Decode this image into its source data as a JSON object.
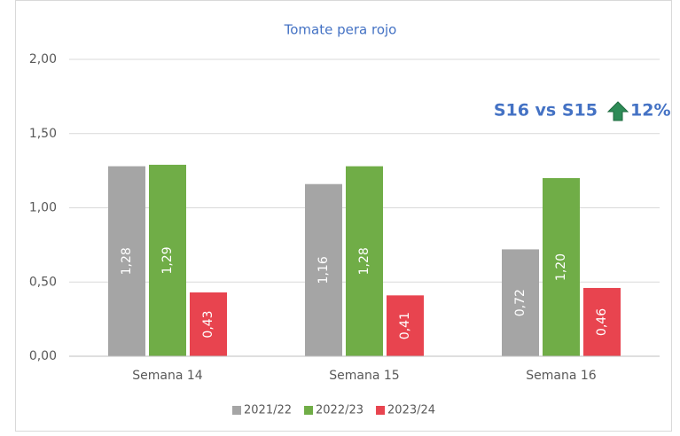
{
  "chart_data": {
    "type": "bar",
    "title": "Tomate pera rojo",
    "categories": [
      "Semana 14",
      "Semana 15",
      "Semana 16"
    ],
    "series": [
      {
        "name": "2021/22",
        "color": "#a5a5a5",
        "values": [
          1.28,
          1.16,
          0.72
        ],
        "value_labels": [
          "1,28",
          "1,16",
          "0,72"
        ]
      },
      {
        "name": "2022/23",
        "color": "#70ad47",
        "values": [
          1.29,
          1.28,
          1.2
        ],
        "value_labels": [
          "1,29",
          "1,28",
          "1,20"
        ]
      },
      {
        "name": "2023/24",
        "color": "#e8444f",
        "values": [
          0.43,
          0.41,
          0.46
        ],
        "value_labels": [
          "0,43",
          "0,41",
          "0,46"
        ]
      }
    ],
    "ylim": [
      0,
      2
    ],
    "yticks": [
      {
        "value": 0,
        "label": "0,00"
      },
      {
        "value": 0.5,
        "label": "0,50"
      },
      {
        "value": 1,
        "label": "1,00"
      },
      {
        "value": 1.5,
        "label": "1,50"
      },
      {
        "value": 2,
        "label": "2,00"
      }
    ],
    "grid": true,
    "legend": "bottom",
    "annotation": {
      "text": "S16 vs S15",
      "change": "12%",
      "color": "#4472c4"
    }
  }
}
